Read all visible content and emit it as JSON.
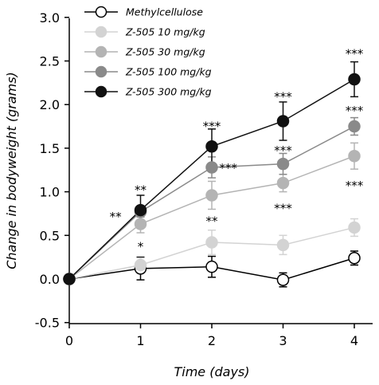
{
  "chart_data": {
    "type": "line",
    "title": "",
    "xlabel": "Time (days)",
    "ylabel": "Change in bodyweight (grams)",
    "xlim": [
      0,
      4
    ],
    "ylim": [
      -0.5,
      3.0
    ],
    "x_ticks": [
      "0",
      "1",
      "2",
      "3",
      "4"
    ],
    "y_ticks": [
      "-0.5",
      "0.0",
      "0.5",
      "1.0",
      "1.5",
      "2.0",
      "2.5",
      "3.0"
    ],
    "grid": false,
    "legend_position": "top-left",
    "x": [
      0,
      1,
      2,
      3,
      4
    ],
    "series": [
      {
        "name": "Methylcellulose",
        "color": "#ffffff",
        "values": [
          0.0,
          0.12,
          0.14,
          -0.01,
          0.24
        ],
        "errors": [
          0,
          0.13,
          0.12,
          0.08,
          0.08
        ]
      },
      {
        "name": "Z-505 10 mg/kg",
        "color": "#d3d3d3",
        "values": [
          0.0,
          0.16,
          0.42,
          0.39,
          0.59
        ],
        "errors": [
          0,
          0.08,
          0.14,
          0.11,
          0.1
        ]
      },
      {
        "name": "Z-505 30 mg/kg",
        "color": "#b4b4b4",
        "values": [
          0.0,
          0.63,
          0.96,
          1.1,
          1.41
        ],
        "errors": [
          0,
          0.1,
          0.16,
          0.1,
          0.15
        ]
      },
      {
        "name": "Z-505 100 mg/kg",
        "color": "#8a8a8a",
        "values": [
          0.0,
          0.77,
          1.28,
          1.32,
          1.75
        ],
        "errors": [
          0,
          0.06,
          0.12,
          0.12,
          0.1
        ]
      },
      {
        "name": "Z-505 300 mg/kg",
        "color": "#111111",
        "values": [
          0.0,
          0.79,
          1.52,
          1.81,
          2.29
        ],
        "errors": [
          0,
          0.17,
          0.2,
          0.22,
          0.2
        ]
      }
    ],
    "annotations": [
      {
        "text": "**",
        "x": 0.65,
        "y": 0.72
      },
      {
        "text": "**",
        "x": 1.0,
        "y": 1.03
      },
      {
        "text": "*",
        "x": 1.0,
        "y": 0.38
      },
      {
        "text": "***",
        "x": 2.0,
        "y": 1.76
      },
      {
        "text": "***",
        "x": 2.23,
        "y": 1.28
      },
      {
        "text": "**",
        "x": 2.0,
        "y": 0.67
      },
      {
        "text": "***",
        "x": 3.0,
        "y": 2.1
      },
      {
        "text": "***",
        "x": 3.0,
        "y": 1.48
      },
      {
        "text": "***",
        "x": 3.0,
        "y": 0.82
      },
      {
        "text": "***",
        "x": 4.0,
        "y": 2.59
      },
      {
        "text": "***",
        "x": 4.0,
        "y": 1.94
      },
      {
        "text": "***",
        "x": 4.0,
        "y": 1.08
      }
    ]
  }
}
